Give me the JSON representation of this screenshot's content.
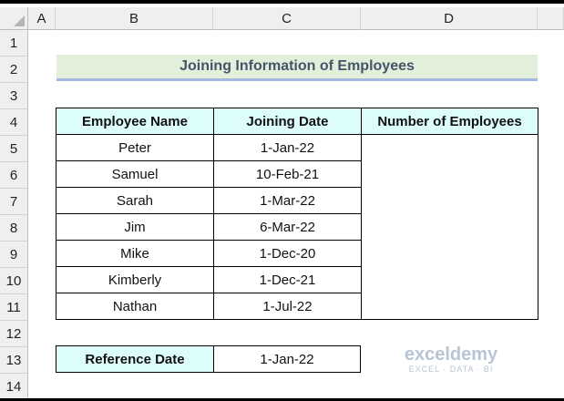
{
  "columns": [
    "A",
    "B",
    "C",
    "D"
  ],
  "rows": [
    "1",
    "2",
    "3",
    "4",
    "5",
    "6",
    "7",
    "8",
    "9",
    "10",
    "11",
    "12",
    "13",
    "14"
  ],
  "title": "Joining Information of Employees",
  "table": {
    "headers": [
      "Employee Name",
      "Joining Date",
      "Number of Employees"
    ],
    "rows": [
      {
        "name": "Peter",
        "date": "1-Jan-22"
      },
      {
        "name": "Samuel",
        "date": "10-Feb-21"
      },
      {
        "name": "Sarah",
        "date": "1-Mar-22"
      },
      {
        "name": "Jim",
        "date": "6-Mar-22"
      },
      {
        "name": "Mike",
        "date": "1-Dec-20"
      },
      {
        "name": "Kimberly",
        "date": "1-Dec-21"
      },
      {
        "name": "Nathan",
        "date": "1-Jul-22"
      }
    ]
  },
  "reference": {
    "label": "Reference Date",
    "value": "1-Jan-22"
  },
  "watermark": {
    "brand": "exceldemy",
    "tagline": "EXCEL · DATA · BI"
  }
}
